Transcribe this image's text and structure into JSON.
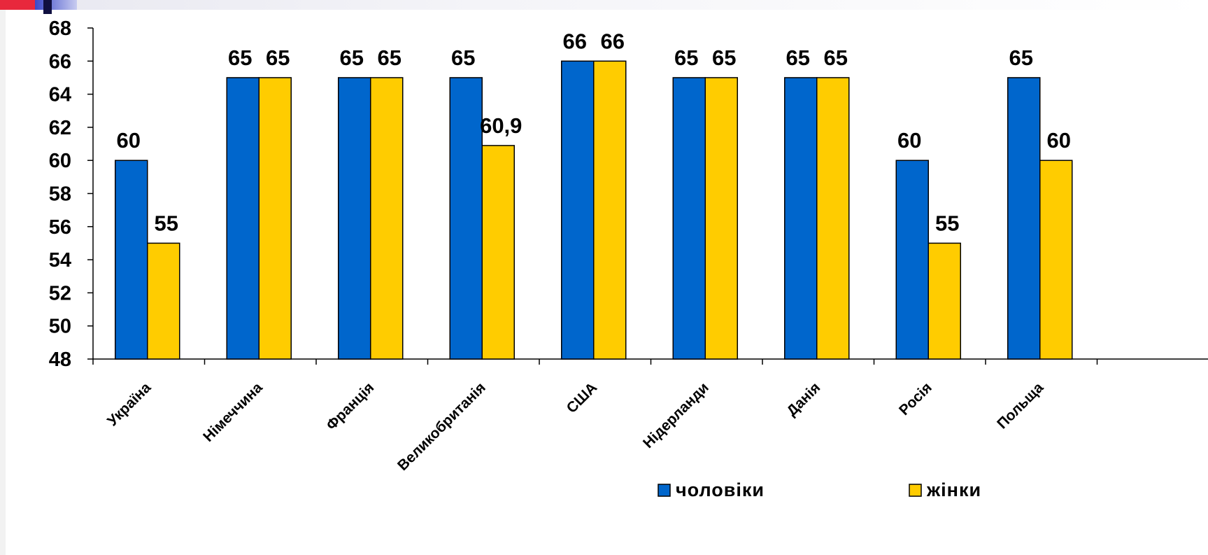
{
  "chart_data": {
    "type": "bar",
    "categories": [
      "Україна",
      "Німеччина",
      "Франція",
      "Великобританія",
      "США",
      "Нідерланди",
      "Данія",
      "Росія",
      "Польща"
    ],
    "series": [
      {
        "name": "чоловіки",
        "color": "#0066cc",
        "values": [
          60,
          65,
          65,
          65,
          66,
          65,
          65,
          60,
          65
        ],
        "labels": [
          "60",
          "65",
          "65",
          "65",
          "66",
          "65",
          "65",
          "60",
          "65"
        ]
      },
      {
        "name": "жінки",
        "color": "#ffcc00",
        "values": [
          55,
          65,
          65,
          60.9,
          66,
          65,
          65,
          55,
          60
        ],
        "labels": [
          "55",
          "65",
          "65",
          "60,9",
          "66",
          "65",
          "65",
          "55",
          "60"
        ]
      }
    ],
    "ylim": [
      48,
      68
    ],
    "ytick_step": 2,
    "yticks": [
      "48",
      "50",
      "52",
      "54",
      "56",
      "58",
      "60",
      "62",
      "64",
      "66",
      "68"
    ],
    "grid": false,
    "legend_position": "bottom-right"
  }
}
